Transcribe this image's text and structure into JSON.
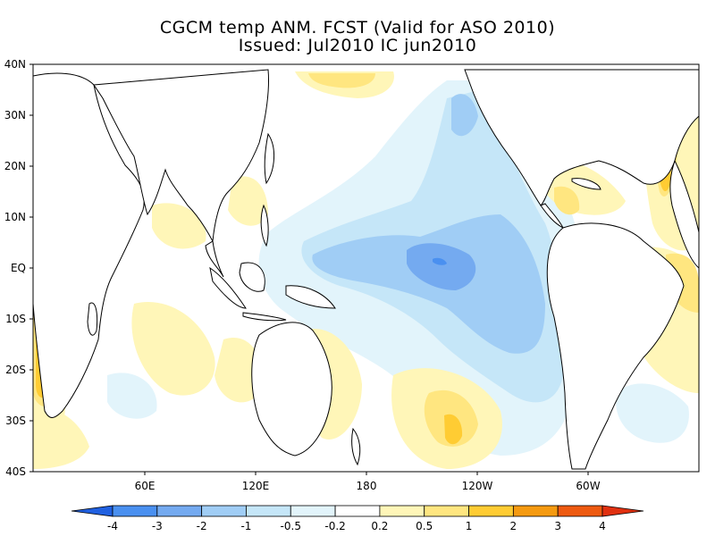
{
  "title_line1": "CGCM temp ANM. FCST  (Valid for ASO 2010)",
  "title_line2": "Issued:  Jul2010 IC jun2010",
  "lat_labels": [
    "40N",
    "30N",
    "20N",
    "10N",
    "EQ",
    "10S",
    "20S",
    "30S",
    "40S"
  ],
  "lon_labels": [
    "60E",
    "120E",
    "180",
    "120W",
    "60W"
  ],
  "colorbar": {
    "labels": [
      "-4",
      "-3",
      "-2",
      "-1",
      "-0.5",
      "-0.2",
      "0.2",
      "0.5",
      "1",
      "2",
      "3",
      "4"
    ],
    "colors": [
      "#2060e0",
      "#4a90f0",
      "#74aaf0",
      "#a0cdf5",
      "#c5e6f8",
      "#e2f4fb",
      "#ffffff",
      "#fff6b8",
      "#ffe680",
      "#ffcc33",
      "#f59a10",
      "#ee5a10",
      "#e03010"
    ]
  }
}
